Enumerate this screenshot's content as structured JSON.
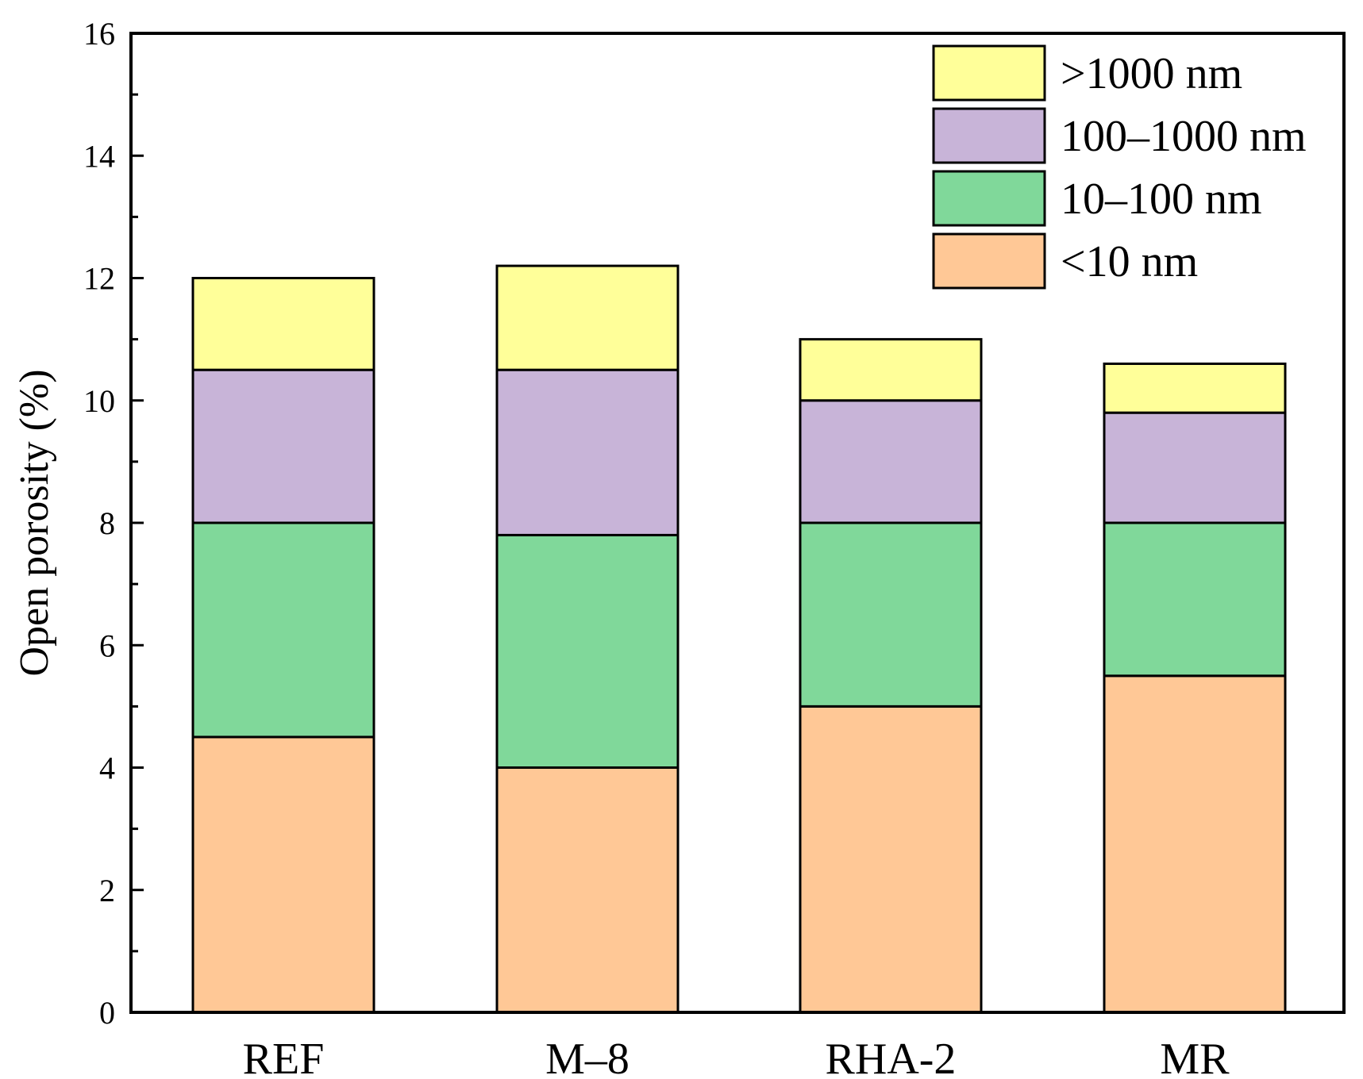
{
  "chart_data": {
    "type": "bar",
    "stacked": true,
    "title": "",
    "xlabel": "",
    "ylabel": "Open porosity (%)",
    "ylim": [
      0,
      16
    ],
    "y_ticks": [
      "0",
      "2",
      "4",
      "6",
      "8",
      "10",
      "12",
      "14",
      "16"
    ],
    "categories": [
      "REF",
      "M–8",
      "RHA-2",
      "MR"
    ],
    "series": [
      {
        "name": "<10 nm",
        "color": "#FFC896",
        "values": [
          4.5,
          4.0,
          5.0,
          5.5
        ]
      },
      {
        "name": "10–100 nm",
        "color": "#80D89A",
        "values": [
          3.5,
          3.8,
          3.0,
          2.5
        ]
      },
      {
        "name": "100–1000 nm",
        "color": "#C8B4D8",
        "values": [
          2.5,
          2.7,
          2.0,
          1.8
        ]
      },
      {
        "name": ">1000 nm",
        "color": "#FFFF99",
        "values": [
          1.5,
          1.7,
          1.0,
          0.8
        ]
      }
    ],
    "legend_order": [
      ">1000 nm",
      "100–1000 nm",
      "10–100 nm",
      "<10 nm"
    ],
    "legend_position": "top-right",
    "grid": false
  }
}
